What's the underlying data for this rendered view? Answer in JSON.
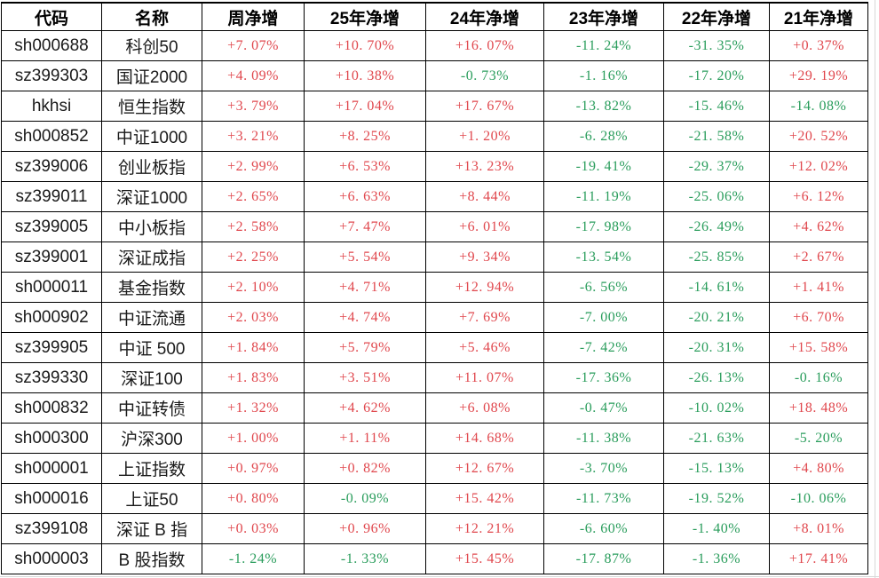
{
  "colors": {
    "positive": "#e0474d",
    "negative": "#2a9d5c",
    "border": "#000000",
    "faint_gridline": "#d8d8d8"
  },
  "table": {
    "columns": [
      "代码",
      "名称",
      "周净增",
      "25年净增",
      "24年净增",
      "23年净增",
      "22年净增",
      "21年净增"
    ],
    "rows": [
      {
        "code": "sh000688",
        "name": "科创50",
        "values": [
          "+7. 07%",
          "+10. 70%",
          "+16. 07%",
          "-11. 24%",
          "-31. 35%",
          "+0. 37%"
        ]
      },
      {
        "code": "sz399303",
        "name": "国证2000",
        "values": [
          "+4. 09%",
          "+10. 38%",
          "-0. 73%",
          "-1. 16%",
          "-17. 20%",
          "+29. 19%"
        ]
      },
      {
        "code": "hkhsi",
        "name": "恒生指数",
        "values": [
          "+3. 79%",
          "+17. 04%",
          "+17. 67%",
          "-13. 82%",
          "-15. 46%",
          "-14. 08%"
        ]
      },
      {
        "code": "sh000852",
        "name": "中证1000",
        "values": [
          "+3. 21%",
          "+8. 25%",
          "+1. 20%",
          "-6. 28%",
          "-21. 58%",
          "+20. 52%"
        ]
      },
      {
        "code": "sz399006",
        "name": "创业板指",
        "values": [
          "+2. 99%",
          "+6. 53%",
          "+13. 23%",
          "-19. 41%",
          "-29. 37%",
          "+12. 02%"
        ]
      },
      {
        "code": "sz399011",
        "name": "深证1000",
        "values": [
          "+2. 65%",
          "+6. 63%",
          "+8. 44%",
          "-11. 19%",
          "-25. 06%",
          "+6. 12%"
        ]
      },
      {
        "code": "sz399005",
        "name": "中小板指",
        "values": [
          "+2. 58%",
          "+7. 47%",
          "+6. 01%",
          "-17. 98%",
          "-26. 49%",
          "+4. 62%"
        ]
      },
      {
        "code": "sz399001",
        "name": "深证成指",
        "values": [
          "+2. 25%",
          "+5. 54%",
          "+9. 34%",
          "-13. 54%",
          "-25. 85%",
          "+2. 67%"
        ]
      },
      {
        "code": "sh000011",
        "name": "基金指数",
        "values": [
          "+2. 10%",
          "+4. 71%",
          "+12. 94%",
          "-6. 56%",
          "-14. 61%",
          "+1. 41%"
        ]
      },
      {
        "code": "sh000902",
        "name": "中证流通",
        "values": [
          "+2. 03%",
          "+4. 74%",
          "+7. 69%",
          "-7. 00%",
          "-20. 21%",
          "+6. 70%"
        ]
      },
      {
        "code": "sz399905",
        "name": "中证 500",
        "values": [
          "+1. 84%",
          "+5. 79%",
          "+5. 46%",
          "-7. 42%",
          "-20. 31%",
          "+15. 58%"
        ]
      },
      {
        "code": "sz399330",
        "name": "深证100",
        "values": [
          "+1. 83%",
          "+3. 51%",
          "+11. 07%",
          "-17. 36%",
          "-26. 13%",
          "-0. 16%"
        ]
      },
      {
        "code": "sh000832",
        "name": "中证转债",
        "values": [
          "+1. 32%",
          "+4. 62%",
          "+6. 08%",
          "-0. 47%",
          "-10. 02%",
          "+18. 48%"
        ]
      },
      {
        "code": "sh000300",
        "name": "沪深300",
        "values": [
          "+1. 00%",
          "+1. 11%",
          "+14. 68%",
          "-11. 38%",
          "-21. 63%",
          "-5. 20%"
        ]
      },
      {
        "code": "sh000001",
        "name": "上证指数",
        "values": [
          "+0. 97%",
          "+0. 82%",
          "+12. 67%",
          "-3. 70%",
          "-15. 13%",
          "+4. 80%"
        ]
      },
      {
        "code": "sh000016",
        "name": "上证50",
        "values": [
          "+0. 80%",
          "-0. 09%",
          "+15. 42%",
          "-11. 73%",
          "-19. 52%",
          "-10. 06%"
        ]
      },
      {
        "code": "sz399108",
        "name": "深证 B 指",
        "values": [
          "+0. 03%",
          "+0. 96%",
          "+12. 21%",
          "-6. 60%",
          "-1. 40%",
          "+8. 01%"
        ]
      },
      {
        "code": "sh000003",
        "name": "B 股指数",
        "values": [
          "-1. 24%",
          "-1. 33%",
          "+15. 45%",
          "-17. 87%",
          "-1. 36%",
          "+17. 41%"
        ]
      }
    ]
  }
}
